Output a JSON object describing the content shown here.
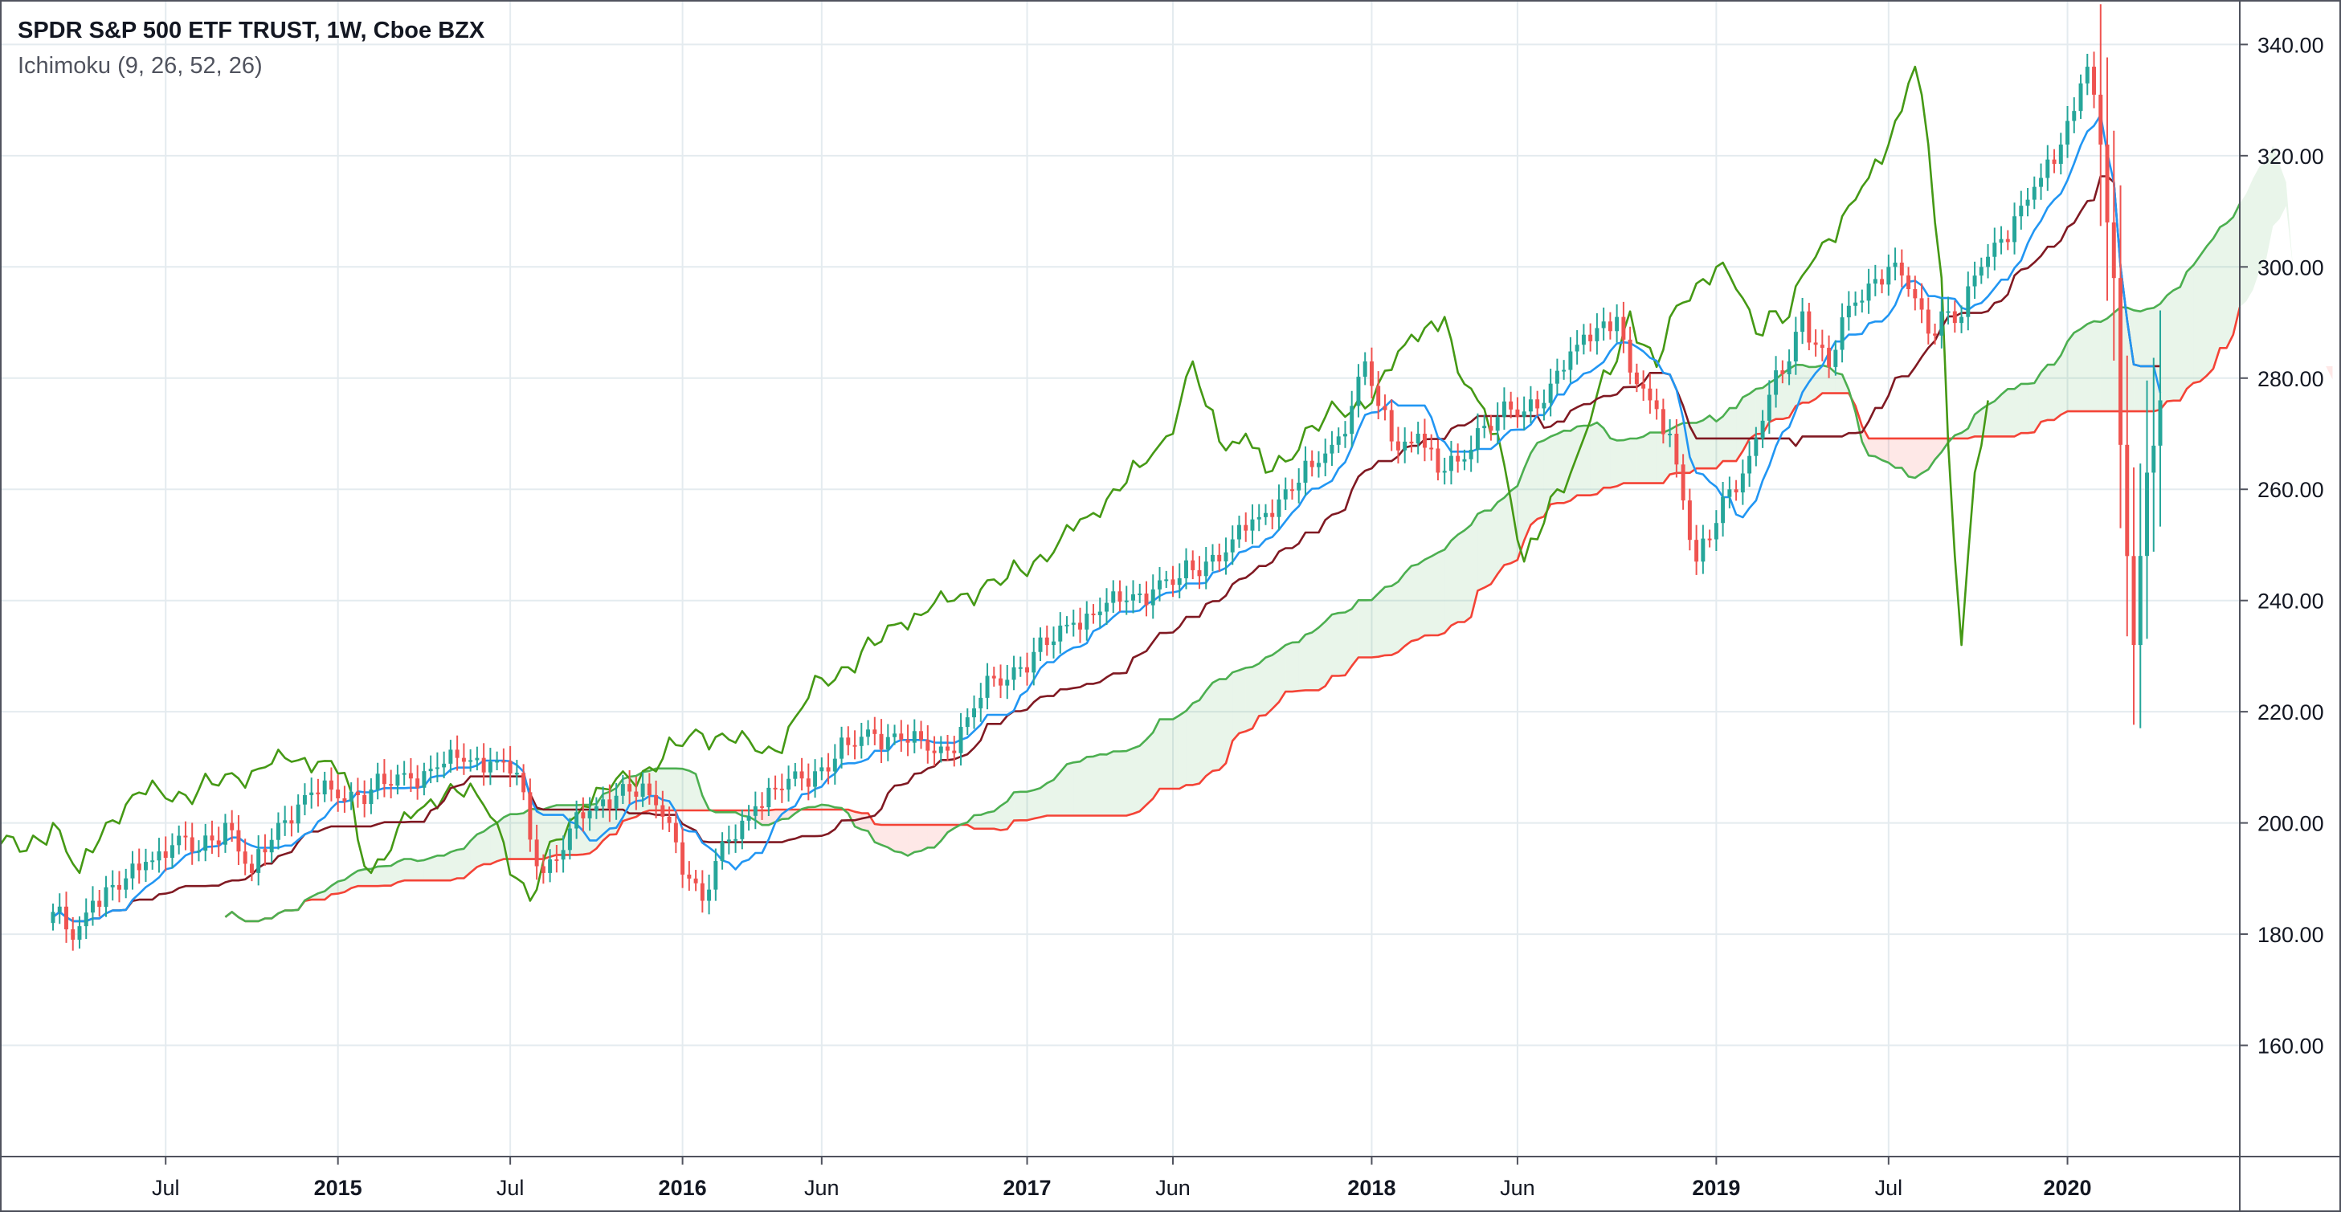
{
  "chart_data": {
    "type": "candlestick",
    "title": "SPDR S&P 500 ETF TRUST, 1W, Cboe BZX",
    "subtitle": "Ichimoku (9, 26, 52, 26)",
    "ylim": [
      140,
      348
    ],
    "y_ticks": [
      "160.00",
      "180.00",
      "200.00",
      "220.00",
      "240.00",
      "260.00",
      "280.00",
      "300.00",
      "320.00",
      "340.00"
    ],
    "x_ticks": [
      {
        "label": "Jul",
        "week": 17,
        "major": false
      },
      {
        "label": "2015",
        "week": 43,
        "major": true
      },
      {
        "label": "Jul",
        "week": 69,
        "major": false
      },
      {
        "label": "2016",
        "week": 95,
        "major": true
      },
      {
        "label": "Jun",
        "week": 116,
        "major": false
      },
      {
        "label": "2017",
        "week": 147,
        "major": true
      },
      {
        "label": "Jun",
        "week": 169,
        "major": false
      },
      {
        "label": "2018",
        "week": 199,
        "major": true
      },
      {
        "label": "Jun",
        "week": 221,
        "major": false
      },
      {
        "label": "2019",
        "week": 251,
        "major": true
      },
      {
        "label": "Jul",
        "week": 277,
        "major": false
      },
      {
        "label": "2020",
        "week": 304,
        "major": true
      }
    ],
    "x_range_weeks": [
      -8,
      330
    ],
    "price_anchors": [
      [
        0,
        184
      ],
      [
        3,
        179
      ],
      [
        6,
        186
      ],
      [
        10,
        188
      ],
      [
        14,
        193
      ],
      [
        18,
        196
      ],
      [
        22,
        195
      ],
      [
        26,
        200
      ],
      [
        30,
        191
      ],
      [
        34,
        200
      ],
      [
        38,
        205
      ],
      [
        42,
        206
      ],
      [
        46,
        205
      ],
      [
        50,
        207
      ],
      [
        54,
        208
      ],
      [
        58,
        210
      ],
      [
        62,
        211
      ],
      [
        66,
        211
      ],
      [
        70,
        209
      ],
      [
        72,
        197
      ],
      [
        74,
        191
      ],
      [
        78,
        199
      ],
      [
        82,
        203
      ],
      [
        86,
        207
      ],
      [
        90,
        205
      ],
      [
        93,
        200
      ],
      [
        96,
        190
      ],
      [
        98,
        186
      ],
      [
        102,
        197
      ],
      [
        106,
        203
      ],
      [
        110,
        206
      ],
      [
        113,
        208
      ],
      [
        116,
        210
      ],
      [
        120,
        214
      ],
      [
        124,
        216
      ],
      [
        128,
        215
      ],
      [
        132,
        213
      ],
      [
        135,
        213
      ],
      [
        138,
        219
      ],
      [
        142,
        226
      ],
      [
        146,
        228
      ],
      [
        150,
        232
      ],
      [
        154,
        236
      ],
      [
        158,
        238
      ],
      [
        162,
        240
      ],
      [
        166,
        242
      ],
      [
        170,
        244
      ],
      [
        174,
        247
      ],
      [
        178,
        251
      ],
      [
        182,
        255
      ],
      [
        186,
        260
      ],
      [
        190,
        264
      ],
      [
        193,
        268
      ],
      [
        196,
        275
      ],
      [
        198,
        283
      ],
      [
        200,
        275
      ],
      [
        203,
        267
      ],
      [
        206,
        270
      ],
      [
        209,
        263
      ],
      [
        212,
        265
      ],
      [
        215,
        271
      ],
      [
        218,
        273
      ],
      [
        222,
        274
      ],
      [
        226,
        279
      ],
      [
        230,
        286
      ],
      [
        233,
        289
      ],
      [
        236,
        291
      ],
      [
        238,
        281
      ],
      [
        241,
        276
      ],
      [
        244,
        270
      ],
      [
        246,
        258
      ],
      [
        248,
        247
      ],
      [
        250,
        251
      ],
      [
        253,
        260
      ],
      [
        256,
        266
      ],
      [
        259,
        277
      ],
      [
        262,
        283
      ],
      [
        264,
        292
      ],
      [
        266,
        286
      ],
      [
        268,
        282
      ],
      [
        271,
        293
      ],
      [
        274,
        297
      ],
      [
        277,
        300
      ],
      [
        280,
        296
      ],
      [
        283,
        288
      ],
      [
        285,
        292
      ],
      [
        288,
        291
      ],
      [
        291,
        300
      ],
      [
        294,
        305
      ],
      [
        297,
        311
      ],
      [
        300,
        316
      ],
      [
        303,
        322
      ],
      [
        306,
        333
      ],
      [
        307,
        336
      ],
      [
        309,
        322
      ],
      [
        310,
        308
      ],
      [
        311,
        298
      ],
      [
        312,
        268
      ],
      [
        313,
        248
      ],
      [
        314,
        232
      ],
      [
        316,
        263
      ],
      [
        318,
        276
      ]
    ],
    "series": [
      {
        "name": "",
        "role": "candles",
        "color_up": "#26a69a",
        "color_down": "#ef5350"
      },
      {
        "name": "",
        "role": "conversion",
        "color": "#2196f3"
      },
      {
        "name": "",
        "role": "base",
        "color": "#801922"
      },
      {
        "name": "",
        "role": "lagging",
        "color": "#459915"
      },
      {
        "name": "",
        "role": "lead-a",
        "color": "#4caf50"
      },
      {
        "name": "",
        "role": "lead-b",
        "color": "#f44336"
      }
    ],
    "cloud_colors": {
      "bullish": "rgba(76,175,80,0.12)",
      "bearish": "rgba(244,67,54,0.12)"
    },
    "grid": true
  }
}
